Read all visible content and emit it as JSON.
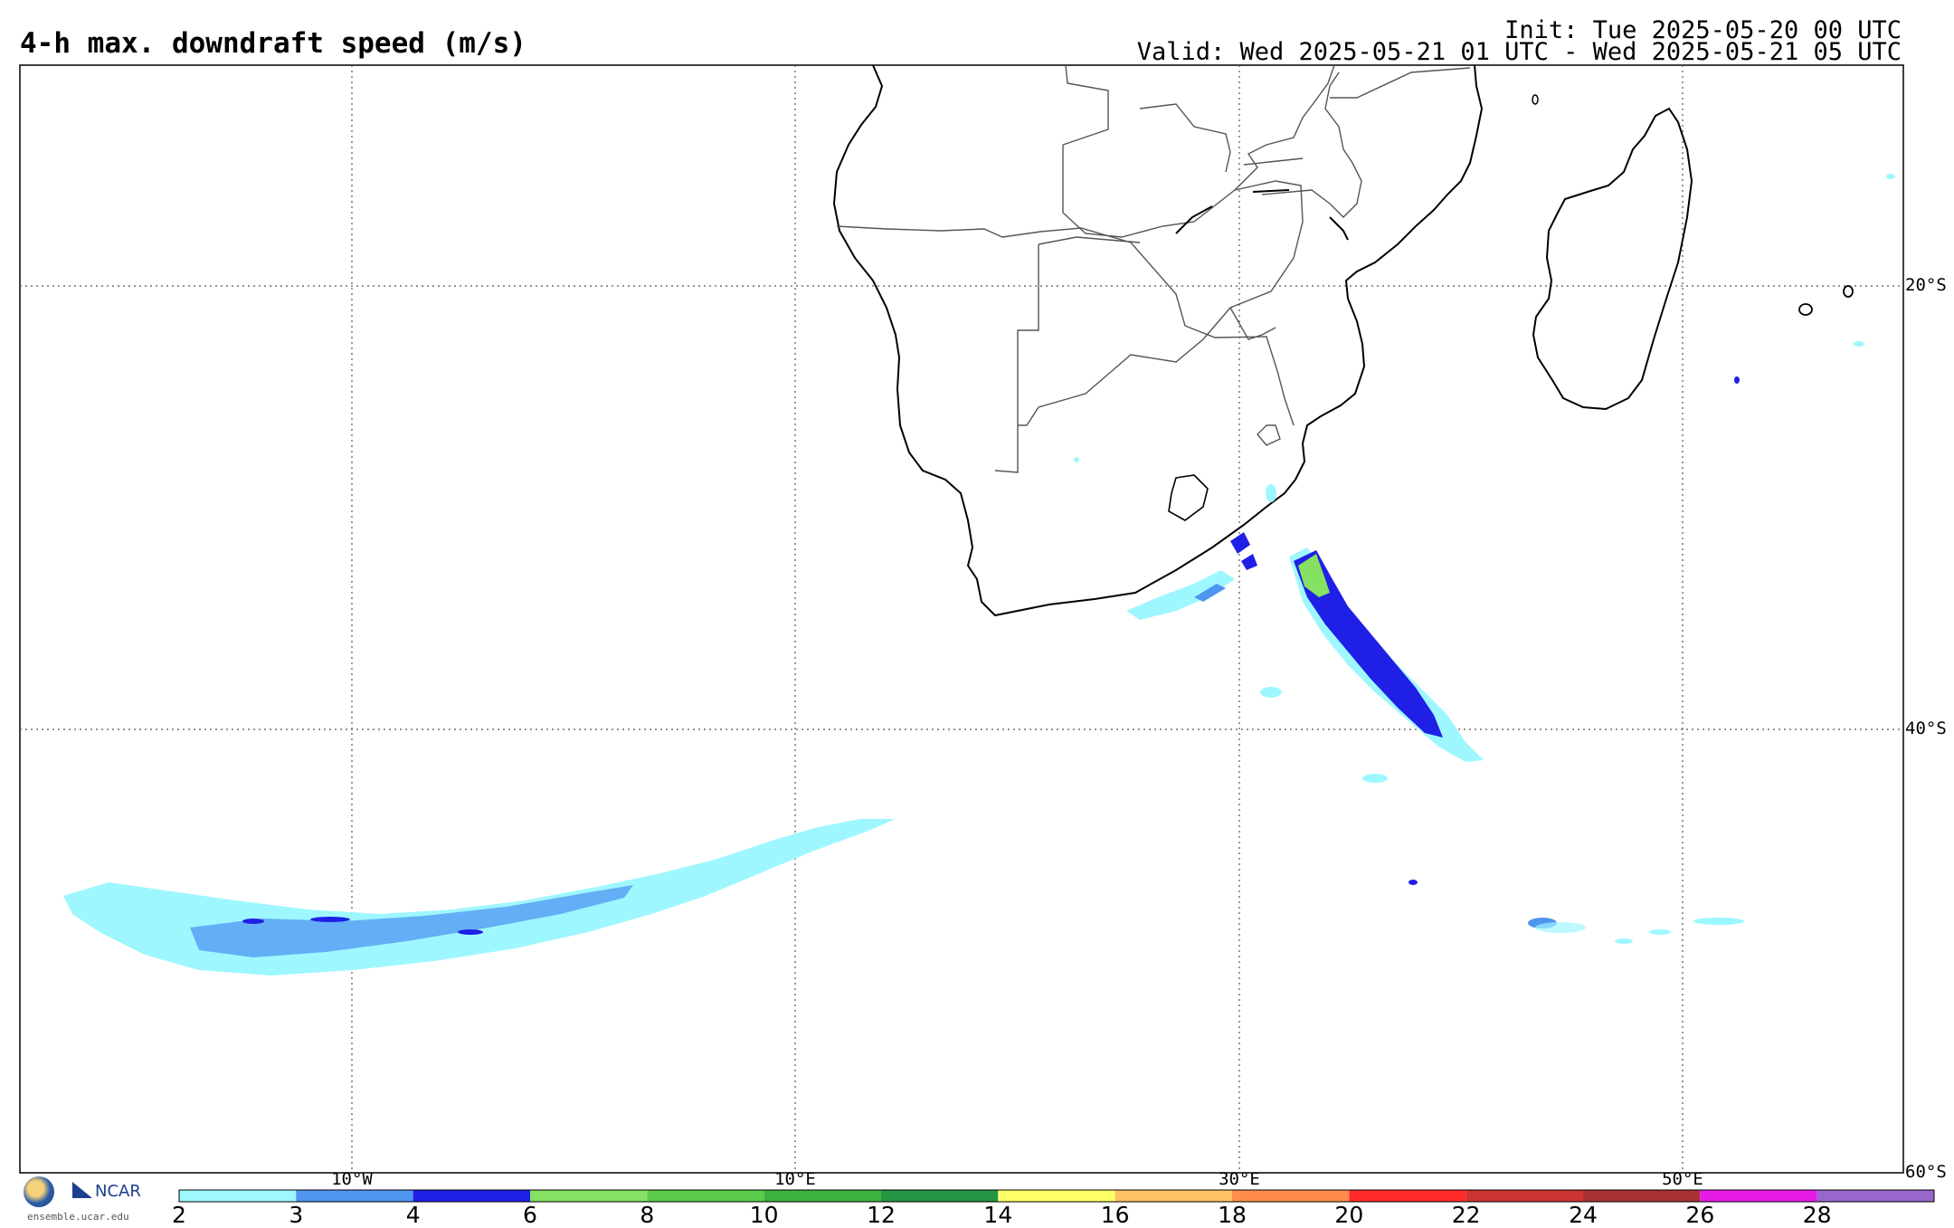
{
  "header": {
    "title": "4-h max. downdraft speed (m/s)",
    "init": "Init: Tue 2025-05-20 00 UTC",
    "valid": "Valid: Wed 2025-05-21 01 UTC - Wed 2025-05-21 05 UTC"
  },
  "map": {
    "region": "Southern Africa and South Atlantic / Southwest Indian Ocean",
    "lat_labels": [
      "20°S",
      "40°S",
      "60°S"
    ],
    "lon_labels": [
      "10°W",
      "10°E",
      "30°E",
      "50°E"
    ],
    "field": "downdraft speed"
  },
  "colorbar": {
    "ticks": [
      "2",
      "3",
      "4",
      "6",
      "8",
      "10",
      "12",
      "14",
      "16",
      "18",
      "20",
      "22",
      "24",
      "26",
      "28"
    ],
    "colors": [
      "#9ef7ff",
      "#4f95f0",
      "#1f1fe6",
      "#86e062",
      "#5acb4a",
      "#3cb140",
      "#259544",
      "#ffff66",
      "#ffc266",
      "#ff8c4a",
      "#ff2a2a",
      "#cc3333",
      "#a83232",
      "#e61ce6",
      "#9966cc"
    ]
  },
  "footer": {
    "org": "NCAR",
    "site": "ensemble.ucar.edu"
  }
}
